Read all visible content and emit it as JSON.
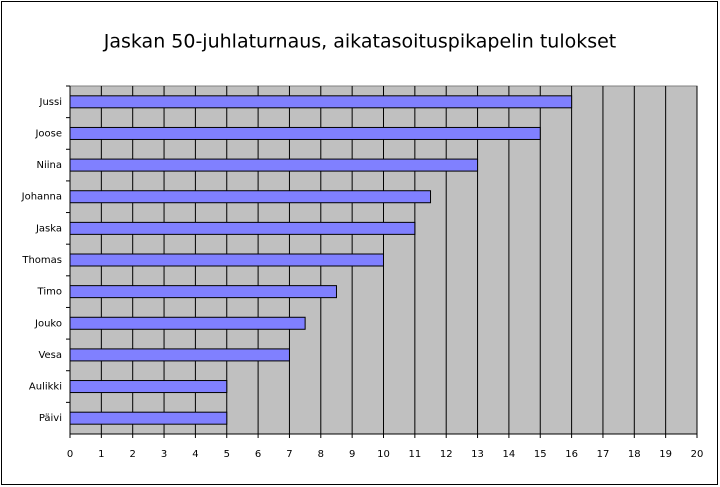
{
  "chart_data": {
    "type": "bar",
    "orientation": "horizontal",
    "title": "Jaskan 50-juhlaturnaus, aikatasoituspikapelin tulokset",
    "categories": [
      "Jussi",
      "Joose",
      "Niina",
      "Johanna",
      "Jaska",
      "Thomas",
      "Timo",
      "Jouko",
      "Vesa",
      "Aulikki",
      "Päivi"
    ],
    "values": [
      16,
      15,
      13,
      11.5,
      11,
      10,
      8.5,
      7.5,
      7,
      5,
      5
    ],
    "color": "#8080ff",
    "xlim": [
      0,
      20
    ],
    "xticks": [
      0,
      1,
      2,
      3,
      4,
      5,
      6,
      7,
      8,
      9,
      10,
      11,
      12,
      13,
      14,
      15,
      16,
      17,
      18,
      19,
      20
    ],
    "grid": true
  }
}
